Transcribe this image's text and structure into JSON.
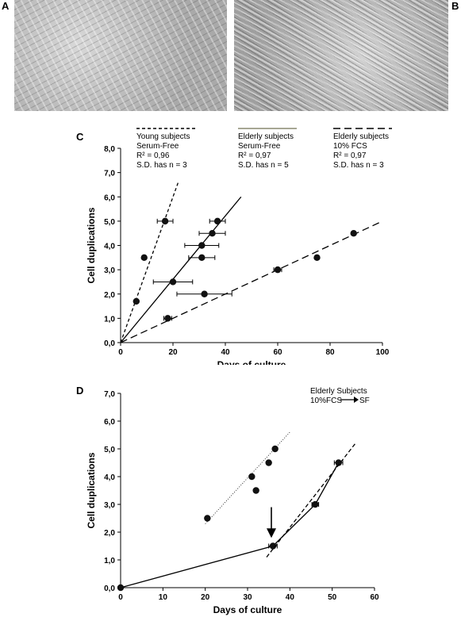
{
  "panels": {
    "a": "A",
    "b": "B",
    "c": "C",
    "d": "D"
  },
  "chart_data": [
    {
      "panel": "C",
      "type": "scatter",
      "xlabel": "Days of culture",
      "ylabel": "Cell duplications",
      "xlim": [
        0,
        100
      ],
      "ylim": [
        0,
        8
      ],
      "xticks": [
        "0",
        "20",
        "40",
        "60",
        "80",
        "100"
      ],
      "yticks": [
        "0,0",
        "1,0",
        "2,0",
        "3,0",
        "4,0",
        "5,0",
        "6,0",
        "7,0",
        "8,0"
      ],
      "legend_position": "top",
      "series": [
        {
          "name": "Young subjects",
          "lines": [
            "Serum-Free",
            "R² = 0,96",
            "S.D. has n = 3"
          ],
          "line_style": "short-dash",
          "points": [
            {
              "x": 6,
              "y": 1.7
            },
            {
              "x": 9,
              "y": 3.5
            },
            {
              "x": 17,
              "y": 5.0
            }
          ],
          "xerr": [
            0,
            0,
            3
          ],
          "fit": {
            "x": [
              0,
              22
            ],
            "y": [
              0,
              6.6
            ]
          }
        },
        {
          "name": "Elderly subjects",
          "lines": [
            "Serum-Free",
            "R² = 0,97",
            "S.D. has n = 5"
          ],
          "line_style": "solid",
          "points": [
            {
              "x": 18,
              "y": 1.0
            },
            {
              "x": 20,
              "y": 2.5
            },
            {
              "x": 31,
              "y": 3.5
            },
            {
              "x": 31,
              "y": 4.0
            },
            {
              "x": 35,
              "y": 4.5
            },
            {
              "x": 37,
              "y": 5.0
            }
          ],
          "xerr": [
            1.5,
            7.5,
            5,
            6.5,
            5,
            3
          ],
          "fit": {
            "x": [
              0,
              46
            ],
            "y": [
              0,
              6.0
            ]
          }
        },
        {
          "name": "Elderly subjects",
          "lines": [
            "10% FCS",
            "R² = 0,97",
            "S.D. has n = 3"
          ],
          "line_style": "long-dash",
          "points": [
            {
              "x": 32,
              "y": 2.0
            },
            {
              "x": 60,
              "y": 3.0
            },
            {
              "x": 75,
              "y": 3.5
            },
            {
              "x": 89,
              "y": 4.5
            }
          ],
          "xerr": [
            10.5,
            1.5,
            0,
            0
          ],
          "fit": {
            "x": [
              0,
              100
            ],
            "y": [
              0,
              5.0
            ]
          }
        }
      ]
    },
    {
      "panel": "D",
      "type": "scatter",
      "xlabel": "Days of culture",
      "ylabel": "Cell duplications",
      "xlim": [
        0,
        60
      ],
      "ylim": [
        0,
        7
      ],
      "xticks": [
        "0",
        "10",
        "20",
        "30",
        "40",
        "50",
        "60"
      ],
      "yticks": [
        "0,0",
        "1,0",
        "2,0",
        "3,0",
        "4,0",
        "5,0",
        "6,0",
        "7,0"
      ],
      "legend_text": [
        "Elderly Subjects",
        "10%FCS",
        "SF"
      ],
      "series": [
        {
          "line_style": "dotted",
          "points": [
            {
              "x": 20.5,
              "y": 2.5
            },
            {
              "x": 31,
              "y": 4.0
            },
            {
              "x": 32,
              "y": 3.5
            },
            {
              "x": 35,
              "y": 4.5
            },
            {
              "x": 36.5,
              "y": 5.0
            }
          ],
          "fit": {
            "x": [
              20,
              40
            ],
            "y": [
              2.3,
              5.6
            ]
          }
        },
        {
          "line_style": "solid",
          "points": [
            {
              "x": 0,
              "y": 0
            },
            {
              "x": 36,
              "y": 1.5
            },
            {
              "x": 46,
              "y": 3.0
            },
            {
              "x": 51.5,
              "y": 4.5
            }
          ],
          "xerr": [
            0,
            1,
            0.8,
            1
          ],
          "connected": true
        },
        {
          "line_style": "dashed",
          "fit": {
            "x": [
              34.5,
              55.5
            ],
            "y": [
              1.1,
              5.2
            ]
          }
        }
      ],
      "annotation": {
        "type": "arrow-down",
        "x": 36,
        "y_from": 2.9,
        "y_to": 1.85
      }
    }
  ]
}
